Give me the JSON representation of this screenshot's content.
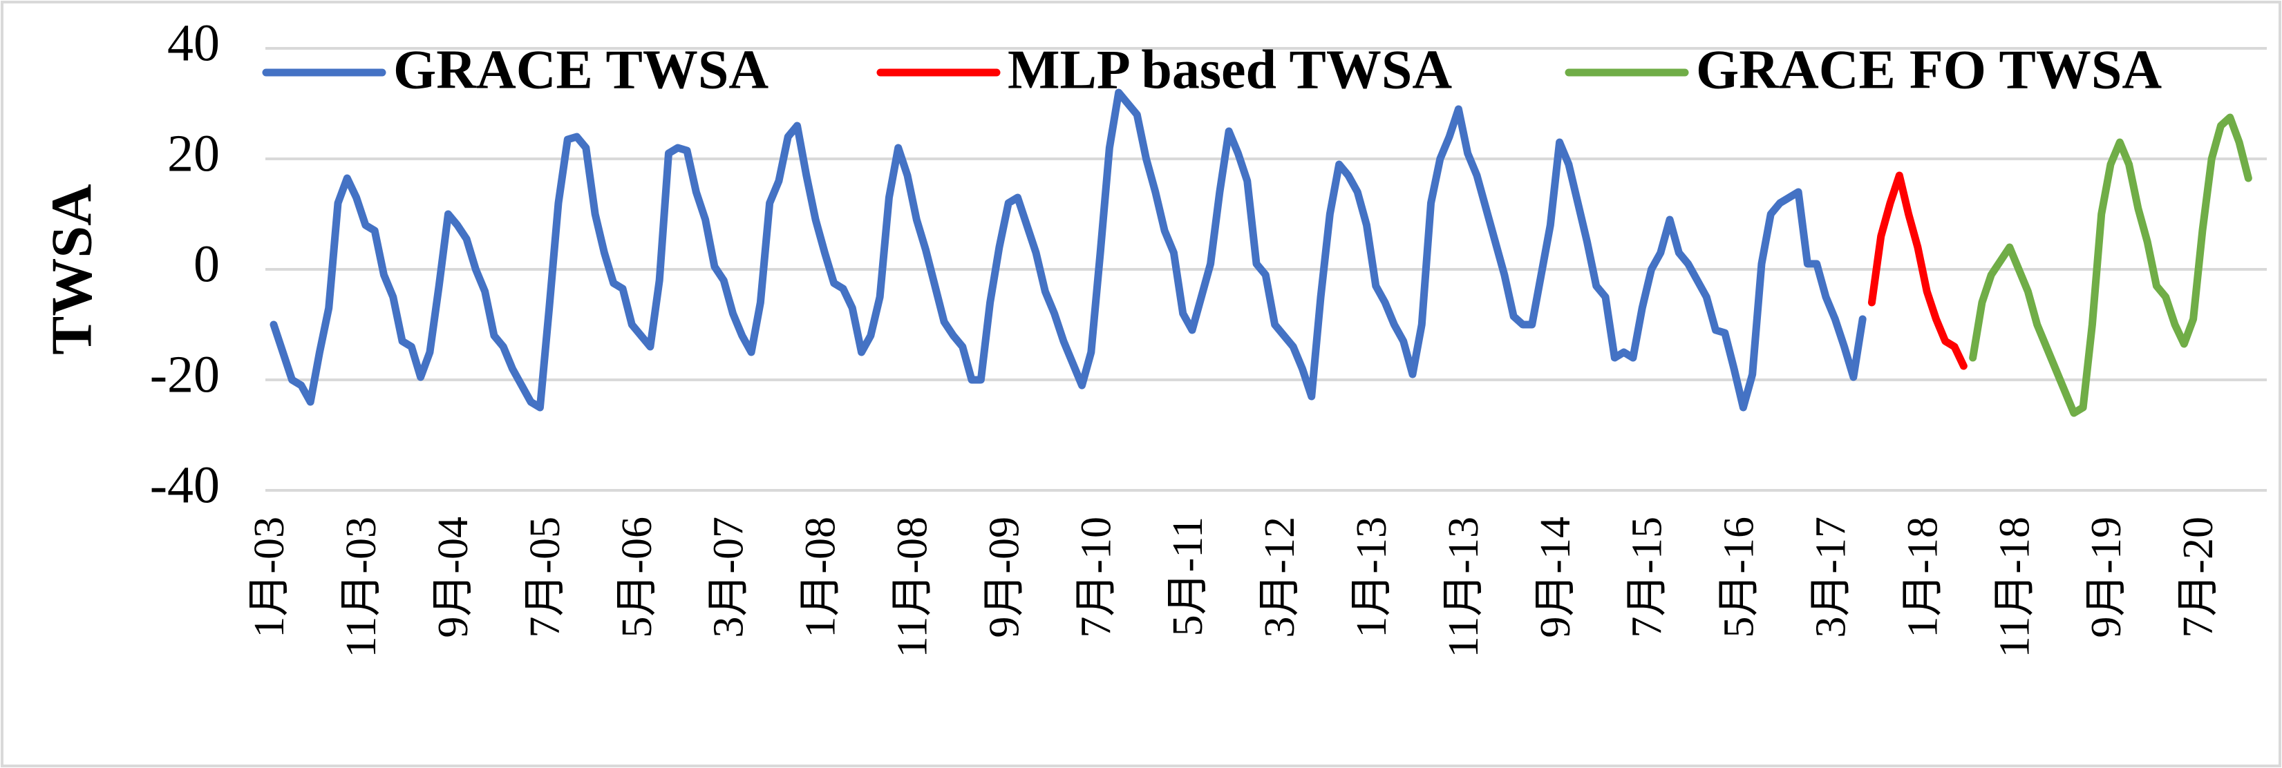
{
  "chart_data": {
    "type": "line",
    "y_label": "TWSA",
    "legend": "top",
    "grid": true,
    "ylim": [
      -40,
      40
    ],
    "yticks": [
      -40,
      -20,
      0,
      20,
      40
    ],
    "categories": [
      "1月-03",
      null,
      null,
      null,
      null,
      null,
      null,
      null,
      null,
      null,
      "11月-03",
      null,
      null,
      null,
      null,
      null,
      null,
      null,
      null,
      null,
      "9月-04",
      null,
      null,
      null,
      null,
      null,
      null,
      null,
      null,
      null,
      "7月-05",
      null,
      null,
      null,
      null,
      null,
      null,
      null,
      null,
      null,
      "5月-06",
      null,
      null,
      null,
      null,
      null,
      null,
      null,
      null,
      null,
      "3月-07",
      null,
      null,
      null,
      null,
      null,
      null,
      null,
      null,
      null,
      "1月-08",
      null,
      null,
      null,
      null,
      null,
      null,
      null,
      null,
      null,
      "11月-08",
      null,
      null,
      null,
      null,
      null,
      null,
      null,
      null,
      null,
      "9月-09",
      null,
      null,
      null,
      null,
      null,
      null,
      null,
      null,
      null,
      "7月-10",
      null,
      null,
      null,
      null,
      null,
      null,
      null,
      null,
      null,
      "5月-11",
      null,
      null,
      null,
      null,
      null,
      null,
      null,
      null,
      null,
      "3月-12",
      null,
      null,
      null,
      null,
      null,
      null,
      null,
      null,
      null,
      "1月-13",
      null,
      null,
      null,
      null,
      null,
      null,
      null,
      null,
      null,
      "11月-13",
      null,
      null,
      null,
      null,
      null,
      null,
      null,
      null,
      null,
      "9月-14",
      null,
      null,
      null,
      null,
      null,
      null,
      null,
      null,
      null,
      "7月-15",
      null,
      null,
      null,
      null,
      null,
      null,
      null,
      null,
      null,
      "5月-16",
      null,
      null,
      null,
      null,
      null,
      null,
      null,
      null,
      null,
      "3月-17",
      null,
      null,
      null,
      null,
      null,
      null,
      null,
      null,
      null,
      "1月-18",
      null,
      null,
      null,
      null,
      null,
      null,
      null,
      null,
      null,
      "11月-18",
      null,
      null,
      null,
      null,
      null,
      null,
      null,
      null,
      null,
      "9月-19",
      null,
      null,
      null,
      null,
      null,
      null,
      null,
      null,
      null,
      "7月-20",
      null,
      null,
      null,
      null,
      null
    ],
    "series": [
      {
        "name": "GRACE TWSA",
        "color": "#4472c4",
        "values": [
          -10,
          -15,
          -20,
          -21,
          -24,
          -15,
          -7,
          12,
          16.5,
          13,
          8,
          7,
          -1,
          -5,
          -13,
          -14,
          -19.5,
          -15,
          -3,
          10,
          8,
          5.5,
          0,
          -4,
          -12,
          -14,
          -18,
          -21,
          -24,
          -25,
          -7,
          12,
          23.5,
          24,
          22,
          10,
          3,
          -2.5,
          -3.5,
          -10,
          -12,
          -14,
          -2,
          21,
          22,
          21.5,
          14,
          9,
          0.5,
          -2,
          -8,
          -12,
          -15,
          -6,
          12,
          16,
          24,
          26,
          17,
          9,
          3,
          -2.5,
          -3.5,
          -7,
          -15,
          -12,
          -5,
          13,
          22,
          17,
          9,
          3.5,
          -3,
          -9.5,
          -12,
          -14,
          -20,
          -20,
          -6,
          4,
          12,
          13,
          8,
          3,
          -4,
          -8,
          -13,
          -17,
          -21,
          -15,
          3,
          22,
          32,
          30,
          28,
          20,
          14,
          7,
          3,
          -8,
          -11,
          -5,
          1,
          14,
          25,
          21,
          16,
          1,
          -1,
          -10,
          -12,
          -14,
          -18,
          -23,
          -5,
          10,
          19,
          17,
          14,
          8,
          -3,
          -6,
          -10,
          -13,
          -19,
          -10,
          12,
          20,
          24,
          29,
          21,
          17,
          11,
          5,
          -1,
          -8.5,
          -10,
          -10,
          -1,
          8,
          23,
          19,
          12,
          5,
          -3,
          -5,
          -16,
          -15,
          -16,
          -7,
          0,
          3,
          9,
          3,
          1,
          -2,
          -5,
          -11,
          -11.5,
          -18,
          -25,
          -19,
          1,
          10,
          12,
          13,
          14,
          1,
          1,
          -5,
          -9,
          -14,
          -19.5,
          -9,
          null,
          null,
          null,
          null,
          null,
          null,
          null,
          null,
          null,
          null,
          null,
          null,
          null,
          null,
          null,
          null,
          null,
          null,
          null,
          null,
          null,
          null,
          null,
          null,
          null,
          null,
          null,
          null,
          null,
          null,
          null,
          null,
          null,
          null,
          null,
          null,
          null,
          null,
          null,
          null,
          null,
          null
        ]
      },
      {
        "name": "MLP based TWSA",
        "color": "#ff0000",
        "values": [
          null,
          null,
          null,
          null,
          null,
          null,
          null,
          null,
          null,
          null,
          null,
          null,
          null,
          null,
          null,
          null,
          null,
          null,
          null,
          null,
          null,
          null,
          null,
          null,
          null,
          null,
          null,
          null,
          null,
          null,
          null,
          null,
          null,
          null,
          null,
          null,
          null,
          null,
          null,
          null,
          null,
          null,
          null,
          null,
          null,
          null,
          null,
          null,
          null,
          null,
          null,
          null,
          null,
          null,
          null,
          null,
          null,
          null,
          null,
          null,
          null,
          null,
          null,
          null,
          null,
          null,
          null,
          null,
          null,
          null,
          null,
          null,
          null,
          null,
          null,
          null,
          null,
          null,
          null,
          null,
          null,
          null,
          null,
          null,
          null,
          null,
          null,
          null,
          null,
          null,
          null,
          null,
          null,
          null,
          null,
          null,
          null,
          null,
          null,
          null,
          null,
          null,
          null,
          null,
          null,
          null,
          null,
          null,
          null,
          null,
          null,
          null,
          null,
          null,
          null,
          null,
          null,
          null,
          null,
          null,
          null,
          null,
          null,
          null,
          null,
          null,
          null,
          null,
          null,
          null,
          null,
          null,
          null,
          null,
          null,
          null,
          null,
          null,
          null,
          null,
          null,
          null,
          null,
          null,
          null,
          null,
          null,
          null,
          null,
          null,
          null,
          null,
          null,
          null,
          null,
          null,
          null,
          null,
          null,
          null,
          null,
          null,
          null,
          null,
          null,
          null,
          null,
          null,
          null,
          null,
          null,
          null,
          null,
          null,
          -6,
          6,
          12,
          17,
          10,
          4,
          -4,
          -9,
          -13,
          -14,
          -17.5,
          null,
          null,
          null,
          null,
          null,
          null,
          null,
          null,
          null,
          null,
          null,
          null,
          null,
          null,
          null,
          null,
          null,
          null,
          null,
          null,
          null,
          null,
          null,
          null,
          null,
          null,
          null,
          null,
          null,
          null,
          null
        ]
      },
      {
        "name": "GRACE FO TWSA",
        "color": "#70ad47",
        "values": [
          null,
          null,
          null,
          null,
          null,
          null,
          null,
          null,
          null,
          null,
          null,
          null,
          null,
          null,
          null,
          null,
          null,
          null,
          null,
          null,
          null,
          null,
          null,
          null,
          null,
          null,
          null,
          null,
          null,
          null,
          null,
          null,
          null,
          null,
          null,
          null,
          null,
          null,
          null,
          null,
          null,
          null,
          null,
          null,
          null,
          null,
          null,
          null,
          null,
          null,
          null,
          null,
          null,
          null,
          null,
          null,
          null,
          null,
          null,
          null,
          null,
          null,
          null,
          null,
          null,
          null,
          null,
          null,
          null,
          null,
          null,
          null,
          null,
          null,
          null,
          null,
          null,
          null,
          null,
          null,
          null,
          null,
          null,
          null,
          null,
          null,
          null,
          null,
          null,
          null,
          null,
          null,
          null,
          null,
          null,
          null,
          null,
          null,
          null,
          null,
          null,
          null,
          null,
          null,
          null,
          null,
          null,
          null,
          null,
          null,
          null,
          null,
          null,
          null,
          null,
          null,
          null,
          null,
          null,
          null,
          null,
          null,
          null,
          null,
          null,
          null,
          null,
          null,
          null,
          null,
          null,
          null,
          null,
          null,
          null,
          null,
          null,
          null,
          null,
          null,
          null,
          null,
          null,
          null,
          null,
          null,
          null,
          null,
          null,
          null,
          null,
          null,
          null,
          null,
          null,
          null,
          null,
          null,
          null,
          null,
          null,
          null,
          null,
          null,
          null,
          null,
          null,
          null,
          null,
          null,
          null,
          null,
          null,
          null,
          null,
          null,
          null,
          null,
          null,
          null,
          null,
          null,
          null,
          null,
          null,
          -16,
          -6,
          -1,
          1.5,
          4,
          0,
          -4,
          -10,
          -14,
          -18,
          -22,
          -26,
          -25,
          -10,
          10,
          19,
          23,
          19,
          11,
          5,
          -3,
          -5,
          -10,
          -13.5,
          -9,
          7,
          20,
          26,
          27.5,
          23,
          16.5
        ]
      }
    ]
  }
}
